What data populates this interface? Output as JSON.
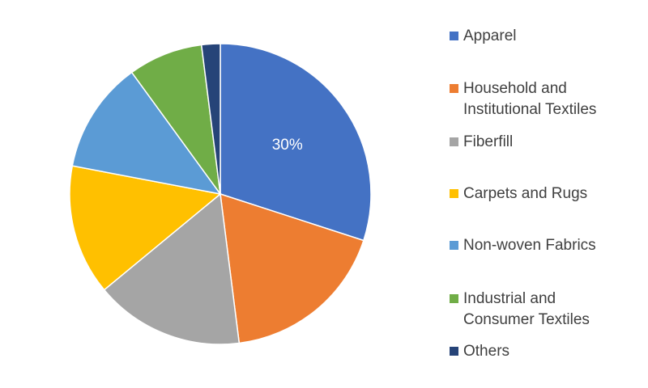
{
  "chart_data": {
    "type": "pie",
    "categories": [
      "Apparel",
      "Household and\nInstitutional Textiles",
      "Fiberfill",
      "Carpets and Rugs",
      "Non-woven Fabrics",
      "Industrial and\nConsumer Textiles",
      "Others"
    ],
    "values": [
      30,
      18,
      16,
      14,
      12,
      8,
      2
    ],
    "value_labels": [
      "30%",
      null,
      null,
      null,
      null,
      null,
      null
    ],
    "colors": [
      "#4472c4",
      "#ed7d31",
      "#a5a5a5",
      "#ffc000",
      "#5b9bd5",
      "#70ad47",
      "#264478"
    ],
    "legend": "right"
  }
}
